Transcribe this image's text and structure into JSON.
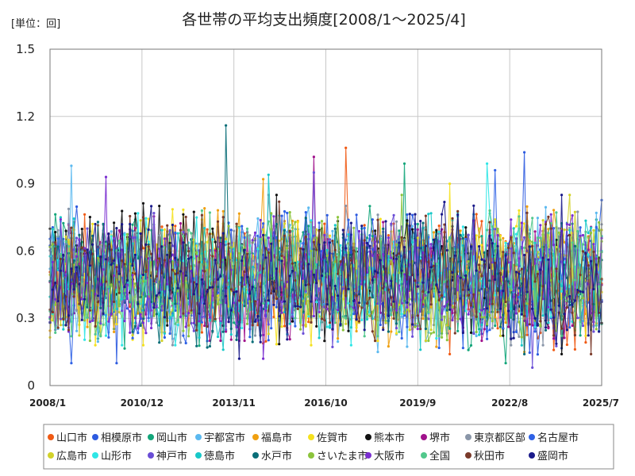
{
  "chart_data": {
    "type": "line",
    "title": "各世帯の平均支出頻度[2008/1～2025/4]",
    "unit_label": "[単位：回]",
    "xlabel": "",
    "ylabel": "",
    "ylim": [
      0,
      1.5
    ],
    "yticks": [
      "0",
      "0.3",
      "0.6",
      "0.9",
      "1.2",
      "1.5"
    ],
    "ytick_values": [
      0,
      0.3,
      0.6,
      0.9,
      1.2,
      1.5
    ],
    "xticks": [
      "2008/1",
      "2010/12",
      "2013/11",
      "2016/10",
      "2019/9",
      "2022/8",
      "2025/7"
    ],
    "x_start": "2008/1",
    "x_end": "2025/7",
    "grid": true,
    "legend_position": "bottom",
    "series": [
      {
        "name": "山口市",
        "color": "#f05a14",
        "peak": 1.06,
        "low": 0.14
      },
      {
        "name": "相模原市",
        "color": "#2d5be0",
        "peak": 1.04,
        "low": 0.1
      },
      {
        "name": "岡山市",
        "color": "#13a67a",
        "peak": 0.99,
        "low": 0.1
      },
      {
        "name": "宇都宮市",
        "color": "#5bb9f0",
        "peak": 0.98,
        "low": 0.15
      },
      {
        "name": "福島市",
        "color": "#f0a010",
        "peak": 0.92,
        "low": 0.15
      },
      {
        "name": "佐賀市",
        "color": "#f5e11e",
        "peak": 0.9,
        "low": 0.18
      },
      {
        "name": "熊本市",
        "color": "#111111",
        "peak": 0.85,
        "low": 0.14
      },
      {
        "name": "堺市",
        "color": "#a0128c",
        "peak": 1.02,
        "low": 0.2
      },
      {
        "name": "東京都区部",
        "color": "#8a96a8",
        "peak": 0.85,
        "low": 0.18
      },
      {
        "name": "名古屋市",
        "color": "#2f62e6",
        "peak": 0.96,
        "low": 0.1
      },
      {
        "name": "広島市",
        "color": "#d2d22a",
        "peak": 0.85,
        "low": 0.2
      },
      {
        "name": "山形市",
        "color": "#2ee6e6",
        "peak": 0.99,
        "low": 0.18
      },
      {
        "name": "神戸市",
        "color": "#6a4ed6",
        "peak": 0.95,
        "low": 0.08
      },
      {
        "name": "徳島市",
        "color": "#18c8c8",
        "peak": 0.94,
        "low": 0.16
      },
      {
        "name": "水戸市",
        "color": "#0a6e78",
        "peak": 1.16,
        "low": 0.14
      },
      {
        "name": "さいたま市",
        "color": "#8cc43c",
        "peak": 0.85,
        "low": 0.2
      },
      {
        "name": "大阪市",
        "color": "#7a2ed0",
        "peak": 0.93,
        "low": 0.12
      },
      {
        "name": "全国",
        "color": "#52c88c",
        "peak": 0.78,
        "low": 0.22
      },
      {
        "name": "秋田市",
        "color": "#7a3a2a",
        "peak": 0.82,
        "low": 0.14
      },
      {
        "name": "盛岡市",
        "color": "#1a1a8a",
        "peak": 0.85,
        "low": 0.12
      }
    ]
  }
}
